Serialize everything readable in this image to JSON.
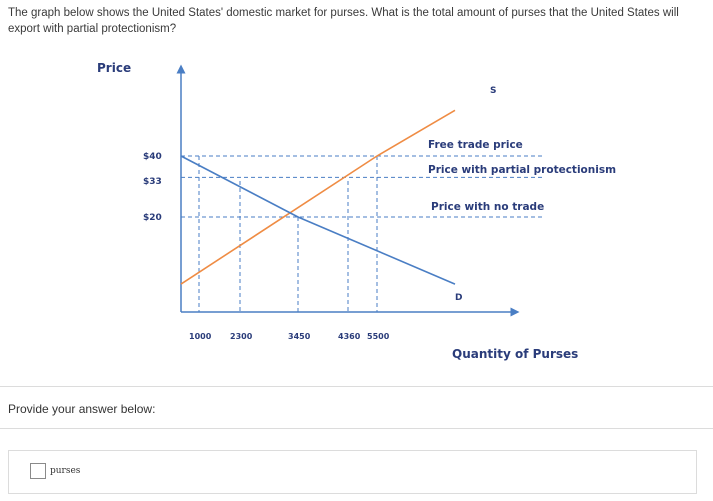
{
  "question": {
    "text": "The graph below shows the United States' domestic market for purses. What is the total amount of purses that the United States will export with partial protectionism?"
  },
  "colors": {
    "supply": "#ef8c44",
    "demand": "#4a7ec4",
    "axis": "#4a7ec4",
    "text": "#333333",
    "label_blue": "#2a3c7a"
  },
  "chart_data": {
    "type": "line",
    "title": "",
    "xlabel": "Quantity of Purses",
    "ylabel": "Price",
    "x_ticks": [
      "1000",
      "2300",
      "3450",
      "4360",
      "5500"
    ],
    "y_ticks": [
      "$40",
      "$33",
      "$20"
    ],
    "price_lines": [
      {
        "label": "Free trade price",
        "price": 40
      },
      {
        "label": "Price with partial protectionism",
        "price": 33
      },
      {
        "label": "Price with no trade",
        "price": 20
      }
    ],
    "series": [
      {
        "name": "S",
        "points": [
          [
            0,
            -2
          ],
          [
            5500,
            40
          ],
          [
            7200,
            55
          ]
        ]
      },
      {
        "name": "D",
        "points": [
          [
            0,
            40
          ],
          [
            3450,
            20
          ],
          [
            7200,
            -2
          ]
        ]
      }
    ]
  },
  "answer": {
    "prompt": "Provide your answer below:",
    "input_value": "",
    "unit": "purses"
  }
}
